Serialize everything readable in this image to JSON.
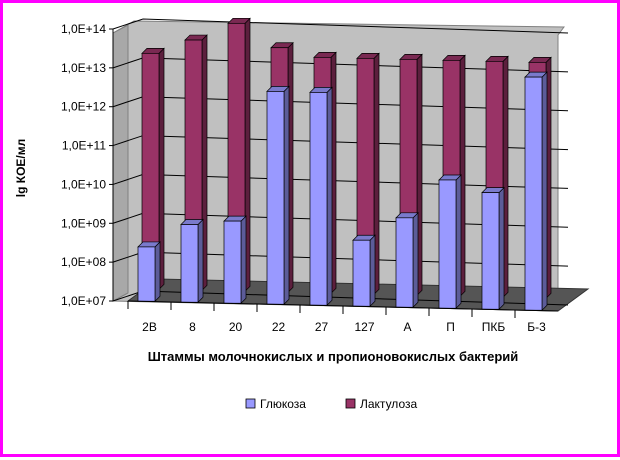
{
  "chart_data": {
    "type": "bar",
    "style": "3d-clustered-columns-depth",
    "scale": "log10",
    "categories": [
      "2В",
      "8",
      "20",
      "22",
      "27",
      "127",
      "А",
      "П",
      "ПКБ",
      "Б-3"
    ],
    "series": [
      {
        "name": "Глюкоза",
        "color": "#9999ff",
        "values": [
          250000000.0,
          1000000000.0,
          1300000000.0,
          3000000000000.0,
          3000000000000.0,
          500000000.0,
          2000000000.0,
          20000000000.0,
          10000000000.0,
          10000000000000.0
        ]
      },
      {
        "name": "Лактулоза",
        "color": "#993366",
        "values": [
          15000000000000.0,
          35000000000000.0,
          100000000000000.0,
          25000000000000.0,
          15000000000000.0,
          15000000000000.0,
          15000000000000.0,
          15000000000000.0,
          15000000000000.0,
          15000000000000.0
        ]
      }
    ],
    "y_ticks": [
      "1,0E+07",
      "1,0E+08",
      "1,0E+09",
      "1,0E+10",
      "1,0E+11",
      "1,0E+12",
      "1,0E+13",
      "1,0E+14"
    ],
    "ylim": [
      10000000.0,
      100000000000000.0
    ],
    "xlabel": "Штаммы молочнокислых и пропионовокислых бактерий",
    "ylabel": "lg КОЕ/мл",
    "legend_position": "bottom",
    "grid": true
  }
}
